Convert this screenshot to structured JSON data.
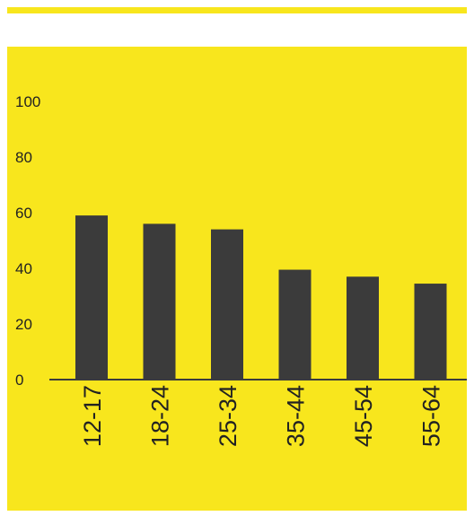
{
  "colors": {
    "background": "#f8e61d",
    "bar": "#3b3b3b",
    "text": "#222222"
  },
  "chart_data": {
    "type": "bar",
    "categories": [
      "12-17",
      "18-24",
      "25-34",
      "35-44",
      "45-54",
      "55-64"
    ],
    "values": [
      59,
      56,
      54,
      39.5,
      37,
      34.5
    ],
    "yticks": [
      "0",
      "20",
      "40",
      "60",
      "80",
      "100"
    ],
    "ylim": [
      0,
      100
    ],
    "xlabel": "",
    "ylabel": "",
    "grid": false
  }
}
